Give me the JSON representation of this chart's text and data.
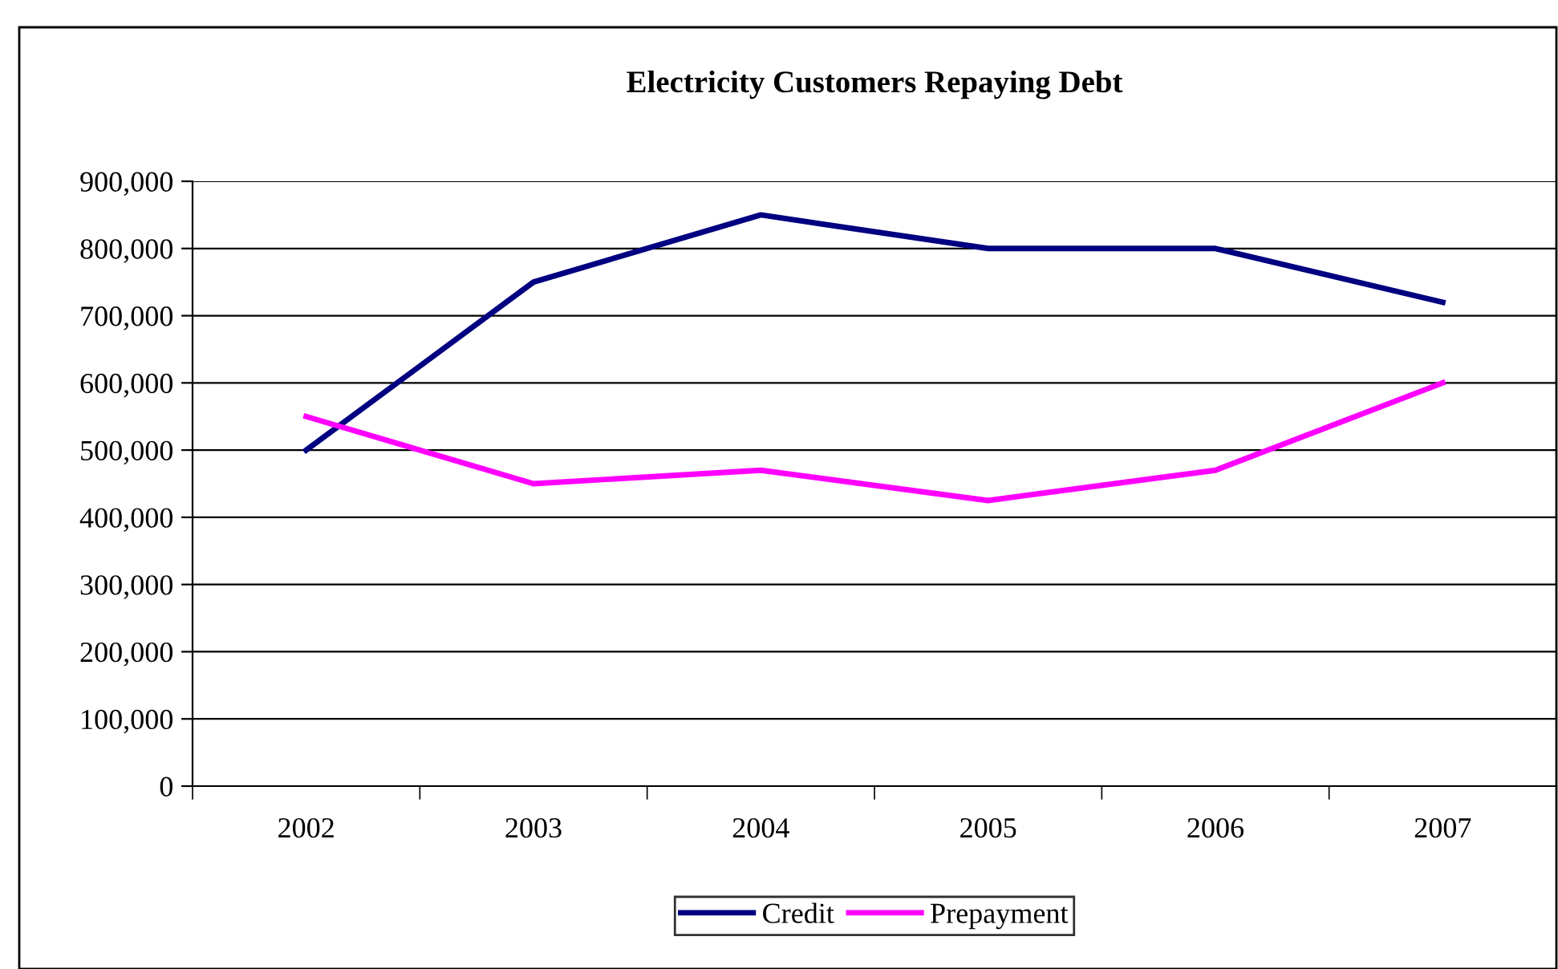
{
  "chart_data": {
    "type": "line",
    "title": "Electricity Customers Repaying Debt",
    "categories": [
      "2002",
      "2003",
      "2004",
      "2005",
      "2006",
      "2007"
    ],
    "series": [
      {
        "name": "Credit",
        "color": "#000080",
        "values": [
          500000,
          750000,
          850000,
          800000,
          800000,
          720000
        ]
      },
      {
        "name": "Prepayment",
        "color": "#ff00ff",
        "values": [
          550000,
          450000,
          470000,
          425000,
          470000,
          600000
        ]
      }
    ],
    "ylim": [
      0,
      900000
    ],
    "yticks": [
      {
        "value": 0,
        "label": "0"
      },
      {
        "value": 100000,
        "label": "100,000"
      },
      {
        "value": 200000,
        "label": "200,000"
      },
      {
        "value": 300000,
        "label": "300,000"
      },
      {
        "value": 400000,
        "label": "400,000"
      },
      {
        "value": 500000,
        "label": "500,000"
      },
      {
        "value": 600000,
        "label": "600,000"
      },
      {
        "value": 700000,
        "label": "700,000"
      },
      {
        "value": 800000,
        "label": "800,000"
      },
      {
        "value": 900000,
        "label": "900,000"
      }
    ],
    "grid": "y",
    "legend": "bottom",
    "marker": "none",
    "line_style": "solid"
  }
}
